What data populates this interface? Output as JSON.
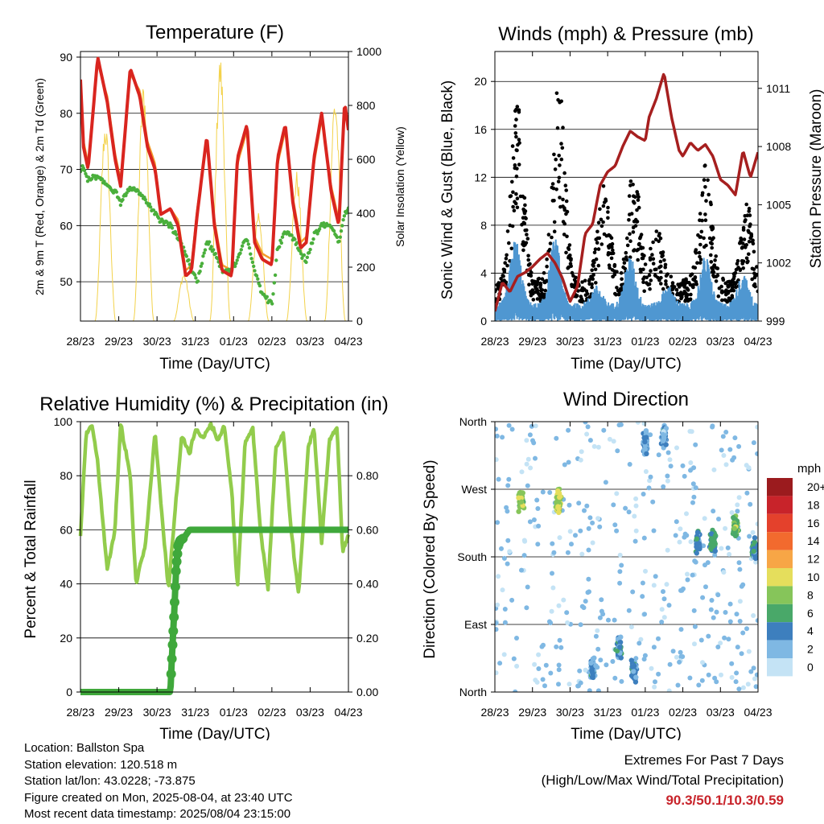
{
  "x_ticks": [
    "28/23",
    "29/23",
    "30/23",
    "31/23",
    "01/23",
    "02/23",
    "03/23",
    "04/23"
  ],
  "chart_data": [
    {
      "id": "temperature",
      "type": "line",
      "title": "Temperature (F)",
      "xlabel": "Time (Day/UTC)",
      "ylabel": "2m & 9m T (Red, Orange) & 2m Td (Green)",
      "ylabel_right": "Solar Insolation (Yellow)",
      "x_ticks": [
        "28/23",
        "29/23",
        "30/23",
        "31/23",
        "01/23",
        "02/23",
        "03/23",
        "04/23"
      ],
      "ylim": [
        43,
        91
      ],
      "yticks": [
        50,
        60,
        70,
        80,
        90
      ],
      "ylim_right": [
        0,
        1000
      ],
      "yticks_right": [
        0,
        200,
        400,
        600,
        800,
        1000
      ],
      "grid": true,
      "x_days": [
        0,
        0.08,
        0.2,
        0.45,
        0.7,
        0.9,
        1.05,
        1.3,
        1.55,
        1.75,
        1.95,
        2.1,
        2.35,
        2.55,
        2.75,
        2.9,
        3.05,
        3.3,
        3.5,
        3.7,
        3.95,
        4.1,
        4.35,
        4.55,
        4.75,
        5.0,
        5.15,
        5.35,
        5.55,
        5.75,
        5.9,
        6.1,
        6.3,
        6.55,
        6.75,
        6.9,
        7.0
      ],
      "series": [
        {
          "name": "2m T",
          "color": "#d9251f",
          "values": [
            86,
            74,
            70,
            90,
            82,
            72,
            67,
            88,
            83,
            74,
            70,
            62,
            63,
            60,
            51,
            52,
            62,
            76,
            60,
            52,
            51,
            72,
            78,
            57,
            54,
            53,
            72,
            78,
            64,
            56,
            57,
            72,
            80,
            66,
            60,
            82,
            77
          ]
        },
        {
          "name": "9m T",
          "color": "#f39a2b",
          "values": [
            85,
            75,
            71,
            89,
            83,
            73,
            68,
            87,
            84,
            75,
            71,
            62,
            63,
            61,
            52,
            53,
            63,
            75,
            61,
            53,
            52,
            71,
            77,
            58,
            55,
            54,
            71,
            77,
            65,
            57,
            58,
            71,
            79,
            67,
            61,
            81,
            78
          ]
        },
        {
          "name": "2m Td",
          "color": "#4aaf3c",
          "values": [
            70,
            70,
            68,
            69,
            67,
            66,
            64,
            67,
            66,
            64,
            62,
            61,
            60,
            58,
            55,
            52,
            50,
            57,
            55,
            52,
            52,
            54,
            58,
            52,
            48,
            46,
            56,
            59,
            58,
            55,
            54,
            58,
            60,
            60,
            57,
            62,
            63
          ]
        }
      ],
      "solar": {
        "name": "Solar Insolation",
        "color": "#f3d24b",
        "days": [
          [
            0.65,
            750
          ],
          [
            1.65,
            890
          ],
          [
            2.7,
            180
          ],
          [
            3.65,
            990
          ],
          [
            4.65,
            420
          ],
          [
            5.65,
            560
          ],
          [
            6.65,
            850
          ]
        ]
      }
    },
    {
      "id": "winds",
      "type": "scatter",
      "title": "Winds (mph) & Pressure (mb)",
      "xlabel": "Time (Day/UTC)",
      "ylabel": "Sonic Wind & Gust (Blue, Black)",
      "ylabel_right": "Station Pressure (Maroon)",
      "x_ticks": [
        "28/23",
        "29/23",
        "30/23",
        "31/23",
        "01/23",
        "02/23",
        "03/23",
        "04/23"
      ],
      "ylim": [
        0,
        22.5
      ],
      "yticks": [
        0,
        4,
        8,
        12,
        16,
        20
      ],
      "ylim_right": [
        999,
        1012.9
      ],
      "yticks_right": [
        999,
        1002,
        1005,
        1008,
        1011
      ],
      "grid": true,
      "wind_colors": {
        "wind": "#4f97d1",
        "gust": "#000000",
        "pressure": "#a61f1f"
      },
      "wind_peaks": [
        [
          0.55,
          7
        ],
        [
          1.6,
          7
        ],
        [
          2.7,
          3
        ],
        [
          3.6,
          5.5
        ],
        [
          4.6,
          3
        ],
        [
          5.6,
          5.5
        ],
        [
          6.6,
          4
        ]
      ],
      "gust_peaks": [
        [
          0.6,
          19.5
        ],
        [
          1.7,
          20.4
        ],
        [
          2.9,
          12
        ],
        [
          3.7,
          13
        ],
        [
          4.3,
          8
        ],
        [
          5.6,
          13.5
        ],
        [
          6.7,
          10
        ]
      ],
      "pressure": {
        "x_days": [
          0,
          0.2,
          0.4,
          0.6,
          0.8,
          1.0,
          1.2,
          1.4,
          1.6,
          1.8,
          2.0,
          2.2,
          2.4,
          2.6,
          2.8,
          3.0,
          3.2,
          3.4,
          3.6,
          3.8,
          4.0,
          4.1,
          4.3,
          4.5,
          4.7,
          4.9,
          5.0,
          5.2,
          5.4,
          5.6,
          5.8,
          6.0,
          6.2,
          6.4,
          6.6,
          6.8,
          7.0
        ],
        "values": [
          999.5,
          1001,
          1000.5,
          1001.3,
          1001.5,
          1001.8,
          1002.2,
          1002.5,
          1002,
          1001.2,
          1000,
          1000.8,
          1003.5,
          1004,
          1006,
          1006.7,
          1007,
          1008,
          1008.8,
          1008.5,
          1008.3,
          1009.5,
          1010.5,
          1011.8,
          1009.5,
          1007.8,
          1007.5,
          1008.2,
          1007.8,
          1008.1,
          1007.5,
          1006.3,
          1006,
          1005.5,
          1007.8,
          1006.4,
          1007.7
        ]
      }
    },
    {
      "id": "humidity",
      "type": "line",
      "title": "Relative Humidity (%) & Precipitation (in)",
      "xlabel": "Time (Day/UTC)",
      "ylabel": "Percent & Total Rainfall",
      "x_ticks": [
        "28/23",
        "29/23",
        "30/23",
        "31/23",
        "01/23",
        "02/23",
        "03/23",
        "04/23"
      ],
      "ylim": [
        0,
        100
      ],
      "yticks": [
        0,
        20,
        40,
        60,
        80,
        100
      ],
      "ylim_right": [
        0,
        1.0
      ],
      "yticks_right": [
        "0.00",
        "0.20",
        "0.40",
        "0.60",
        "0.80"
      ],
      "yticks_right_values": [
        0,
        0.2,
        0.4,
        0.6,
        0.8
      ],
      "grid": true,
      "rh": {
        "name": "Relative Humidity",
        "color": "#92cc4c",
        "x_days": [
          0,
          0.15,
          0.3,
          0.45,
          0.7,
          0.9,
          1.05,
          1.3,
          1.45,
          1.7,
          1.95,
          2.1,
          2.3,
          2.5,
          2.65,
          2.85,
          3.0,
          3.2,
          3.4,
          3.6,
          3.75,
          3.95,
          4.1,
          4.3,
          4.5,
          4.7,
          4.9,
          5.1,
          5.3,
          5.5,
          5.7,
          5.95,
          6.1,
          6.3,
          6.5,
          6.7,
          6.85,
          7.0
        ],
        "values": [
          58,
          96,
          99,
          85,
          45,
          60,
          99,
          80,
          40,
          55,
          96,
          70,
          38,
          72,
          95,
          88,
          97,
          94,
          99,
          93,
          99,
          75,
          38,
          92,
          98,
          60,
          38,
          90,
          96,
          60,
          36,
          90,
          98,
          55,
          93,
          98,
          52,
          58
        ]
      },
      "precip": {
        "name": "Total Precipitation",
        "color": "#3fa83b",
        "x_days": [
          0,
          2.35,
          2.38,
          2.45,
          2.5,
          2.55,
          2.6,
          2.7,
          2.85,
          2.95,
          7.0
        ],
        "values": [
          0.0,
          0.0,
          0.1,
          0.3,
          0.46,
          0.54,
          0.56,
          0.57,
          0.6,
          0.6,
          0.6
        ]
      }
    },
    {
      "id": "wind_direction",
      "type": "scatter",
      "title": "Wind Direction",
      "xlabel": "Time (Day/UTC)",
      "ylabel": "Direction (Colored By Speed)",
      "x_ticks": [
        "28/23",
        "29/23",
        "30/23",
        "31/23",
        "01/23",
        "02/23",
        "03/23",
        "04/23"
      ],
      "ylim": [
        0,
        360
      ],
      "ytick_labels": [
        "North",
        "East",
        "South",
        "West",
        "North"
      ],
      "ytick_values": [
        0,
        90,
        180,
        270,
        360
      ],
      "grid": true,
      "clusters": [
        [
          0.7,
          255,
          8
        ],
        [
          1.7,
          255,
          9
        ],
        [
          2.6,
          30,
          3
        ],
        [
          3.3,
          55,
          4
        ],
        [
          3.7,
          30,
          4
        ],
        [
          4.0,
          330,
          3
        ],
        [
          4.5,
          340,
          3
        ],
        [
          5.4,
          200,
          4
        ],
        [
          5.8,
          200,
          6
        ],
        [
          6.4,
          220,
          7
        ],
        [
          6.9,
          190,
          4
        ]
      ],
      "colorbar": {
        "title": "mph",
        "labels": [
          "20+",
          "18",
          "16",
          "14",
          "12",
          "10",
          "8",
          "6",
          "4",
          "2",
          "0"
        ],
        "colors": [
          "#9b1b1e",
          "#c8232a",
          "#e4412c",
          "#f26a2e",
          "#f7a646",
          "#e5de5c",
          "#86c55a",
          "#49a869",
          "#3d7fbe",
          "#7fb8e3",
          "#c4e3f5"
        ]
      }
    }
  ],
  "info": {
    "location": "Location: Ballston Spa",
    "elevation": "Station elevation: 120.518 m",
    "latlon": "Station lat/lon: 43.0228; -73.875",
    "created": "Figure created on Mon, 2025-08-04, at 23:40 UTC",
    "timestamp": "Most recent data timestamp: 2025/08/04 23:15:00"
  },
  "extremes": {
    "title": "Extremes For Past 7 Days",
    "subtitle": "(High/Low/Max Wind/Total Precipitation)",
    "values": "90.3/50.1/10.3/0.59"
  }
}
